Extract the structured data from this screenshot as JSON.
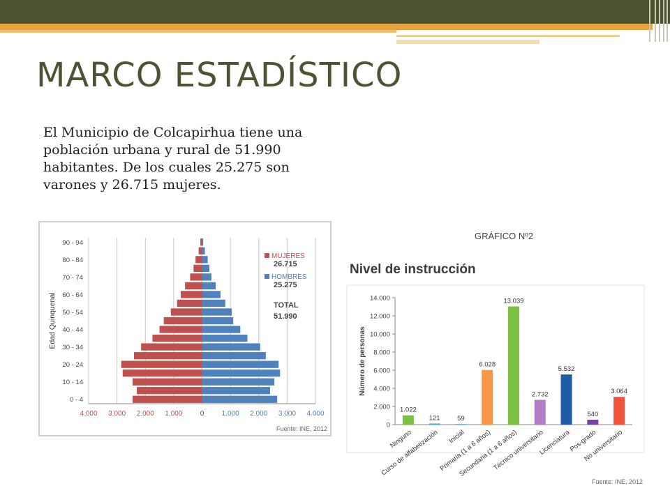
{
  "slide": {
    "title": "MARCO ESTADÍSTICO",
    "intro": "El Municipio de Colcapirhua tiene una población urbana y rural de 51.990 habitantes. De los cuales 25.275 son varones y 26.715 mujeres.",
    "graph_caption": "GRÁFICO Nº2"
  },
  "colors": {
    "header_bar": "#4a5230",
    "accent": "#e8a33d",
    "title": "#4b5533",
    "women": "#c0504d",
    "men": "#4f81bd"
  },
  "chart_data": [
    {
      "type": "bar",
      "orientation": "horizontal",
      "ylabel": "Edad Quinquenal",
      "categories": [
        "0 - 4",
        "5 - 9",
        "10 - 14",
        "15 - 19",
        "20 - 24",
        "25 - 29",
        "30 - 34",
        "35 - 39",
        "40 - 44",
        "45 - 49",
        "50 - 54",
        "55 - 59",
        "60 - 64",
        "65 - 69",
        "70 - 74",
        "75 - 79",
        "80 - 84",
        "85 - 89",
        "90 - 94"
      ],
      "y_tick_labels": [
        "0 - 4",
        "10 - 14",
        "20 - 24",
        "30 - 34",
        "40 - 44",
        "50 - 54",
        "60 - 64",
        "70 - 74",
        "80 - 84",
        "90 - 94"
      ],
      "x_tick_labels": [
        "4.000",
        "3.000",
        "2.000",
        "1.000",
        "0",
        "1.000",
        "2.000",
        "3.000",
        "4.000"
      ],
      "xlim": [
        -4000,
        4000
      ],
      "series": [
        {
          "name": "MUJERES",
          "total": "26.715",
          "color": "#c0504d",
          "values": [
            2450,
            2300,
            2450,
            2800,
            2850,
            2400,
            2150,
            1750,
            1500,
            1350,
            1100,
            880,
            750,
            600,
            420,
            300,
            230,
            120,
            60
          ]
        },
        {
          "name": "HOMBRES",
          "total": "25.275",
          "color": "#4f81bd",
          "values": [
            2650,
            2400,
            2550,
            2750,
            2700,
            2250,
            2050,
            1600,
            1350,
            1100,
            1050,
            820,
            650,
            480,
            330,
            260,
            200,
            100,
            40
          ]
        }
      ],
      "total_label": "TOTAL",
      "total_value": "51.990",
      "source": "Fuente: INE, 2012"
    },
    {
      "type": "bar",
      "title": "Nivel de instrucción",
      "ylabel": "Número de personas",
      "ylim": [
        0,
        14000
      ],
      "y_tick_labels": [
        "0",
        "2.000",
        "4.000",
        "6.000",
        "8.000",
        "10.000",
        "12.000",
        "14.000"
      ],
      "categories": [
        "Ninguno",
        "Curso de alfabetización",
        "Inicial",
        "Primaria (1 a 6 años)",
        "Secundaria (1 a 6 años)",
        "Técnico universitario",
        "Licenciatura",
        "Pos-grado",
        "No universitario"
      ],
      "values": [
        1022,
        121,
        59,
        6028,
        13039,
        2732,
        5532,
        540,
        3064
      ],
      "value_labels": [
        "1.022",
        "121",
        "59",
        "6.028",
        "13.039",
        "2.732",
        "5.532",
        "540",
        "3.064"
      ],
      "colors": [
        "#7ac143",
        "#4bacc6",
        "#5a9bd5",
        "#f79646",
        "#7ac143",
        "#b37cc6",
        "#1f5aa6",
        "#7b3f9e",
        "#f0523d"
      ],
      "source": "Fuente: INE, 2012"
    }
  ]
}
